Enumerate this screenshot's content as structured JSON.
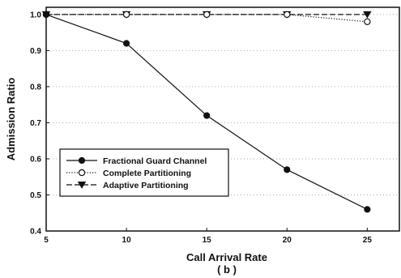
{
  "chart_data": {
    "type": "line",
    "title": "",
    "xlabel": "Call Arrival Rate",
    "sublabel": "( b )",
    "ylabel": "Admission Ratio",
    "x": [
      5,
      10,
      15,
      20,
      25
    ],
    "xlim": [
      5,
      27
    ],
    "ylim": [
      0.4,
      1.02
    ],
    "xticks": [
      "5",
      "10",
      "15",
      "20",
      "25"
    ],
    "yticks": [
      "0.4",
      "0.5",
      "0.6",
      "0.7",
      "0.8",
      "0.9",
      "1.0"
    ],
    "grid": true,
    "legend_position": "lower-left",
    "series": [
      {
        "name": "Fractional Guard Channel",
        "values": [
          1.0,
          0.92,
          0.72,
          0.57,
          0.46
        ],
        "marker": "filled-circle",
        "line": "solid",
        "color": "#111111"
      },
      {
        "name": "Complete Partitioning",
        "values": [
          1.0,
          1.0,
          1.0,
          1.0,
          0.98
        ],
        "marker": "open-circle",
        "line": "dotted",
        "color": "#111111"
      },
      {
        "name": "Adaptive Partitioning",
        "values": [
          1.0,
          1.0,
          1.0,
          1.0,
          1.0
        ],
        "marker": "filled-triangle-down",
        "line": "dashed",
        "color": "#111111"
      }
    ]
  }
}
